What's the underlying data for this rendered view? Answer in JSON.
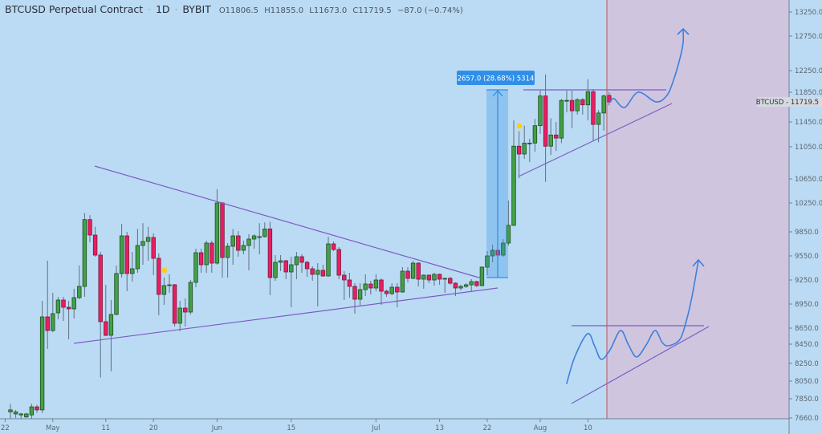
{
  "header": {
    "symbol": "BTCUSD Perpetual Contract",
    "interval": "1D",
    "exchange": "BYBIT",
    "separator": "·",
    "open": "O11806.5",
    "high": "H11855.0",
    "low": "L11673.0",
    "close": "C11719.5",
    "change": "−87.0 (−0.74%)"
  },
  "price_label": "BTCUSD - 11719.5",
  "measure_label": "2657.0 (28.68%) 5314",
  "colors": {
    "background": "#bbdbf4",
    "projection_zone": "#d0c5df",
    "up": "#43a047",
    "down": "#e91e63",
    "trendline": "#7b5cc4",
    "forecast_path": "#3f7fdc",
    "measure": "#2f8fe8",
    "marker": "#ffd000",
    "divider": "#c06570"
  },
  "chart_data": {
    "type": "candlestick",
    "title": "BTCUSD Perpetual Contract",
    "interval": "1D",
    "y_scale": "nonlinear",
    "y_ticks": [
      13250,
      12750,
      12250,
      11850,
      11450,
      11050,
      10650,
      10250,
      9850,
      9550,
      9250,
      8950,
      8650,
      8450,
      8250,
      8050,
      7850,
      7660
    ],
    "y_tick_labels": [
      "13250.0",
      "12750.0",
      "12250.0",
      "11850.0",
      "11450.0",
      "11050.0",
      "10650.0",
      "10250.0",
      "9850.0",
      "9550.0",
      "9250.0",
      "8950.0",
      "8650.0",
      "8450.0",
      "8250.0",
      "8050.0",
      "7850.0",
      "7660.0"
    ],
    "x_ticks": [
      {
        "label": "22",
        "date": "Apr 22"
      },
      {
        "label": "May",
        "date": "May 1"
      },
      {
        "label": "11",
        "date": "May 11"
      },
      {
        "label": "20",
        "date": "May 20"
      },
      {
        "label": "Jun",
        "date": "Jun 1"
      },
      {
        "label": "15",
        "date": "Jun 15"
      },
      {
        "label": "Jul",
        "date": "Jul 1"
      },
      {
        "label": "13",
        "date": "Jul 13"
      },
      {
        "label": "22",
        "date": "Jul 22"
      },
      {
        "label": "Aug",
        "date": "Aug 1"
      },
      {
        "label": "10",
        "date": "Aug 10"
      }
    ],
    "columns": [
      "date",
      "open",
      "high",
      "low",
      "close"
    ],
    "candles": [
      [
        "Apr 23",
        7720,
        7800,
        7650,
        7740
      ],
      [
        "Apr 24",
        7700,
        7740,
        7660,
        7720
      ],
      [
        "Apr 25",
        7690,
        7710,
        7650,
        7700
      ],
      [
        "Apr 26",
        7670,
        7710,
        7660,
        7700
      ],
      [
        "Apr 27",
        7690,
        7800,
        7650,
        7770
      ],
      [
        "Apr 28",
        7770,
        7790,
        7710,
        7740
      ],
      [
        "Apr 29",
        7740,
        8990,
        7710,
        8790
      ],
      [
        "Apr 30",
        8790,
        9490,
        8400,
        8620
      ],
      [
        "May 1",
        8620,
        9090,
        8600,
        8830
      ],
      [
        "May 2",
        8840,
        9040,
        8760,
        9000
      ],
      [
        "May 3",
        9000,
        9040,
        8740,
        8910
      ],
      [
        "May 4",
        8910,
        8990,
        8510,
        8890
      ],
      [
        "May 5",
        8890,
        9140,
        8770,
        9030
      ],
      [
        "May 6",
        9030,
        9430,
        9010,
        9170
      ],
      [
        "May 7",
        9170,
        10110,
        9040,
        10020
      ],
      [
        "May 8",
        10020,
        10080,
        9720,
        9810
      ],
      [
        "May 9",
        9810,
        9920,
        9540,
        9560
      ],
      [
        "May 10",
        9560,
        9600,
        8090,
        8730
      ],
      [
        "May 11",
        8730,
        9190,
        8550,
        8560
      ],
      [
        "May 12",
        8560,
        9000,
        8160,
        8820
      ],
      [
        "May 13",
        8820,
        9430,
        8810,
        9330
      ],
      [
        "May 14",
        9330,
        9960,
        9280,
        9800
      ],
      [
        "May 15",
        9800,
        9850,
        9110,
        9330
      ],
      [
        "May 16",
        9330,
        9600,
        9230,
        9390
      ],
      [
        "May 17",
        9390,
        9890,
        9340,
        9680
      ],
      [
        "May 18",
        9680,
        9970,
        9440,
        9730
      ],
      [
        "May 19",
        9730,
        9920,
        9490,
        9780
      ],
      [
        "May 20",
        9780,
        9830,
        9310,
        9520
      ],
      [
        "May 21",
        9520,
        9580,
        8810,
        9070
      ],
      [
        "May 22",
        9070,
        9280,
        8940,
        9180
      ],
      [
        "May 23",
        9180,
        9320,
        9090,
        9190
      ],
      [
        "May 24",
        9190,
        9200,
        8670,
        8710
      ],
      [
        "May 25",
        8710,
        8990,
        8610,
        8900
      ],
      [
        "May 26",
        8900,
        9020,
        8670,
        8850
      ],
      [
        "May 27",
        8850,
        9250,
        8820,
        9220
      ],
      [
        "May 28",
        9220,
        9640,
        9160,
        9590
      ],
      [
        "May 29",
        9590,
        9640,
        9340,
        9440
      ],
      [
        "May 30",
        9440,
        9740,
        9340,
        9710
      ],
      [
        "May 31",
        9710,
        9740,
        9340,
        9460
      ],
      [
        "Jun 1",
        9460,
        10480,
        9440,
        10250
      ],
      [
        "Jun 2",
        10250,
        10270,
        9280,
        9530
      ],
      [
        "Jun 3",
        9530,
        9710,
        9280,
        9670
      ],
      [
        "Jun 4",
        9670,
        9890,
        9440,
        9800
      ],
      [
        "Jun 5",
        9800,
        9860,
        9540,
        9620
      ],
      [
        "Jun 6",
        9620,
        9740,
        9570,
        9680
      ],
      [
        "Jun 7",
        9680,
        9820,
        9370,
        9760
      ],
      [
        "Jun 8",
        9760,
        9820,
        9640,
        9800
      ],
      [
        "Jun 9",
        9790,
        9970,
        9570,
        9790
      ],
      [
        "Jun 10",
        9790,
        9980,
        9780,
        9890
      ],
      [
        "Jun 11",
        9890,
        9990,
        9060,
        9280
      ],
      [
        "Jun 12",
        9280,
        9560,
        9240,
        9470
      ],
      [
        "Jun 13",
        9470,
        9560,
        9360,
        9490
      ],
      [
        "Jun 14",
        9490,
        9500,
        9260,
        9350
      ],
      [
        "Jun 15",
        9350,
        9540,
        8910,
        9440
      ],
      [
        "Jun 16",
        9440,
        9600,
        9260,
        9540
      ],
      [
        "Jun 17",
        9540,
        9570,
        9340,
        9470
      ],
      [
        "Jun 18",
        9470,
        9490,
        9290,
        9390
      ],
      [
        "Jun 19",
        9390,
        9420,
        9240,
        9320
      ],
      [
        "Jun 20",
        9320,
        9460,
        8920,
        9370
      ],
      [
        "Jun 21",
        9370,
        9440,
        9290,
        9300
      ],
      [
        "Jun 22",
        9300,
        9790,
        9290,
        9700
      ],
      [
        "Jun 23",
        9700,
        9730,
        9610,
        9630
      ],
      [
        "Jun 24",
        9630,
        9660,
        9260,
        9310
      ],
      [
        "Jun 25",
        9310,
        9360,
        9000,
        9250
      ],
      [
        "Jun 26",
        9250,
        9340,
        9030,
        9170
      ],
      [
        "Jun 27",
        9170,
        9210,
        8830,
        9010
      ],
      [
        "Jun 28",
        9010,
        9210,
        8930,
        9130
      ],
      [
        "Jun 29",
        9130,
        9320,
        9050,
        9200
      ],
      [
        "Jun 30",
        9200,
        9240,
        9070,
        9150
      ],
      [
        "Jul 1",
        9150,
        9320,
        9110,
        9250
      ],
      [
        "Jul 2",
        9250,
        9270,
        8940,
        9110
      ],
      [
        "Jul 3",
        9110,
        9130,
        9040,
        9080
      ],
      [
        "Jul 4",
        9080,
        9210,
        9060,
        9160
      ],
      [
        "Jul 5",
        9160,
        9210,
        8910,
        9100
      ],
      [
        "Jul 6",
        9100,
        9410,
        9090,
        9360
      ],
      [
        "Jul 7",
        9360,
        9410,
        9220,
        9270
      ],
      [
        "Jul 8",
        9270,
        9490,
        9260,
        9460
      ],
      [
        "Jul 9",
        9460,
        9470,
        9170,
        9260
      ],
      [
        "Jul 10",
        9260,
        9320,
        9140,
        9310
      ],
      [
        "Jul 11",
        9310,
        9320,
        9210,
        9250
      ],
      [
        "Jul 12",
        9250,
        9340,
        9180,
        9320
      ],
      [
        "Jul 13",
        9320,
        9330,
        9190,
        9260
      ],
      [
        "Jul 14",
        9260,
        9280,
        9090,
        9270
      ],
      [
        "Jul 15",
        9270,
        9290,
        9190,
        9210
      ],
      [
        "Jul 16",
        9210,
        9220,
        9050,
        9150
      ],
      [
        "Jul 17",
        9150,
        9190,
        9120,
        9170
      ],
      [
        "Jul 18",
        9170,
        9210,
        9150,
        9190
      ],
      [
        "Jul 19",
        9190,
        9260,
        9110,
        9230
      ],
      [
        "Jul 20",
        9230,
        9240,
        9160,
        9180
      ],
      [
        "Jul 21",
        9180,
        9420,
        9170,
        9410
      ],
      [
        "Jul 22",
        9410,
        9610,
        9310,
        9550
      ],
      [
        "Jul 23",
        9550,
        9690,
        9470,
        9620
      ],
      [
        "Jul 24",
        9620,
        9640,
        9540,
        9560
      ],
      [
        "Jul 25",
        9560,
        9760,
        9540,
        9710
      ],
      [
        "Jul 26",
        9710,
        10290,
        9680,
        9940
      ],
      [
        "Jul 27",
        9940,
        11470,
        9930,
        11060
      ],
      [
        "Jul 28",
        11060,
        11300,
        10660,
        10960
      ],
      [
        "Jul 29",
        10960,
        11390,
        10900,
        11110
      ],
      [
        "Jul 30",
        11100,
        11180,
        10860,
        11110
      ],
      [
        "Jul 31",
        11110,
        11490,
        10990,
        11390
      ],
      [
        "Aug 1",
        11390,
        11880,
        11260,
        11800
      ],
      [
        "Aug 2",
        11800,
        12180,
        10600,
        11060
      ],
      [
        "Aug 3",
        11060,
        11500,
        10950,
        11240
      ],
      [
        "Aug 4",
        11240,
        11450,
        11000,
        11190
      ],
      [
        "Aug 5",
        11190,
        11760,
        11110,
        11740
      ],
      [
        "Aug 6",
        11740,
        11880,
        11580,
        11740
      ],
      [
        "Aug 7",
        11740,
        11880,
        11350,
        11600
      ],
      [
        "Aug 8",
        11600,
        11770,
        11550,
        11750
      ],
      [
        "Aug 9",
        11750,
        11770,
        11550,
        11680
      ],
      [
        "Aug 10",
        11680,
        12090,
        11470,
        11860
      ],
      [
        "Aug 11",
        11860,
        11910,
        11140,
        11410
      ],
      [
        "Aug 12",
        11410,
        11610,
        11120,
        11570
      ],
      [
        "Aug 13",
        11570,
        11820,
        11310,
        11800
      ],
      [
        "Aug 14",
        11806.5,
        11855,
        11673,
        11719.5
      ]
    ],
    "last_price": 11719.5,
    "measure": {
      "change": 2657.0,
      "change_pct": 28.68,
      "value": 5314
    }
  }
}
